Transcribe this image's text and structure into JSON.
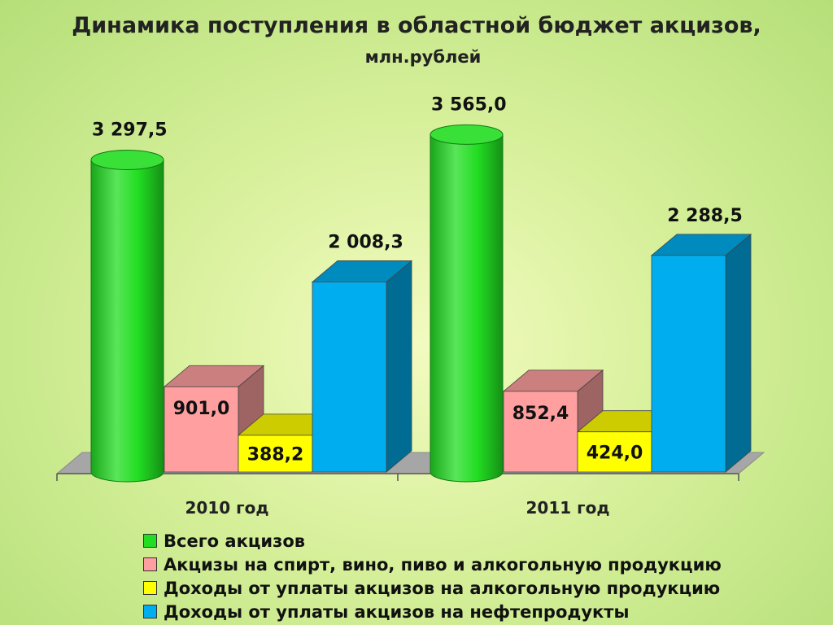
{
  "chart_data": {
    "type": "bar",
    "title": "Динамика поступления в областной бюджет акцизов,",
    "subtitle": "млн.рублей",
    "categories": [
      "2010 год",
      "2011 год"
    ],
    "series": [
      {
        "name": "Всего акцизов",
        "values": [
          3297.5,
          3565.0
        ],
        "labels": [
          "3 297,5",
          "3 565,0"
        ],
        "color": "#22dd22",
        "shape": "cylinder"
      },
      {
        "name": "Акцизы на спирт, вино, пиво и алкогольную продукцию",
        "values": [
          901.0,
          852.4
        ],
        "labels": [
          "901,0",
          "852,4"
        ],
        "color": "#ff9f9f",
        "shape": "box"
      },
      {
        "name": "Доходы от уплаты акцизов на алкогольную продукцию",
        "values": [
          388.2,
          424.0
        ],
        "labels": [
          "388,2",
          "424,0"
        ],
        "color": "#ffff00",
        "shape": "box"
      },
      {
        "name": "Доходы от уплаты акцизов на нефтепродукты",
        "values": [
          2008.3,
          2288.5
        ],
        "labels": [
          "2 008,3",
          "2 288,5"
        ],
        "color": "#00aeef",
        "shape": "box"
      }
    ],
    "ylim": [
      0,
      3800
    ],
    "grid": false,
    "legend_position": "bottom",
    "three_d": true
  }
}
